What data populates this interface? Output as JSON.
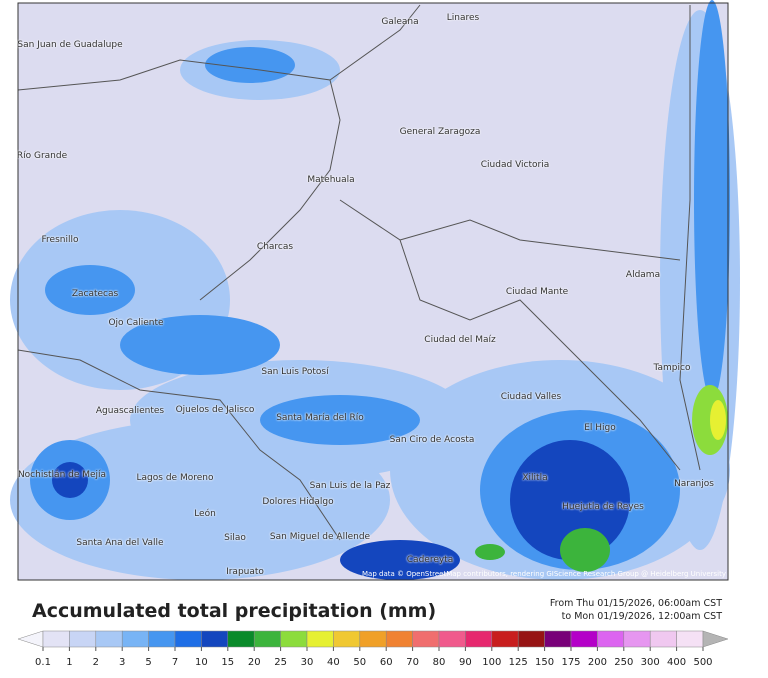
{
  "map": {
    "places": [
      "San Juan de Guadalupe",
      "Galeana",
      "Linares",
      "Río Grande",
      "General Zaragoza",
      "Ciudad Victoria",
      "Matehuala",
      "Fresnillo",
      "Charcas",
      "Aldama",
      "Ciudad Mante",
      "Zacatecas",
      "Ojo Caliente",
      "Ciudad del Maíz",
      "Tampico",
      "San Luis Potosí",
      "Ciudad Valles",
      "Aguascalientes",
      "Ojuelos de Jalisco",
      "Santa María del Río",
      "El Higo",
      "San Ciro de Acosta",
      "Nochistlán de Mejía",
      "Lagos de Moreno",
      "Xilitla",
      "Naranjos",
      "San Luis de la Paz",
      "Huejutla de Reyes",
      "Dolores Hidalgo",
      "León",
      "San Miguel de Allende",
      "Silao",
      "Santa Ana del Valle",
      "Cadereyta",
      "Irapuato"
    ],
    "attribution": "Map data © OpenStreetMap contributors, rendering GIScience Research Group @ Heidelberg University"
  },
  "legend": {
    "title": "Accumulated total precipitation (mm)",
    "period_from": "From Thu 01/15/2026, 06:00am CST",
    "period_to": "to Mon 01/19/2026, 12:00am CST",
    "ticks": [
      0.1,
      1,
      2,
      3,
      5,
      7,
      10,
      15,
      20,
      25,
      30,
      40,
      50,
      60,
      70,
      80,
      90,
      100,
      125,
      150,
      175,
      200,
      250,
      300,
      400,
      500
    ],
    "colors": [
      "#f4f4fb",
      "#e3e3f5",
      "#c8d5f5",
      "#a8c8f5",
      "#78b4f5",
      "#4696f0",
      "#1e6ee6",
      "#1446be",
      "#0a8a2a",
      "#3cb43c",
      "#8cdc3c",
      "#e6f032",
      "#f0c832",
      "#f0a028",
      "#f08232",
      "#f06e6e",
      "#f05a8c",
      "#e6286e",
      "#c81e1e",
      "#961414",
      "#780078",
      "#b400c8",
      "#dc64f0",
      "#e696f0",
      "#f0c8f0",
      "#f5e1f5",
      "#b4b4b4"
    ]
  }
}
